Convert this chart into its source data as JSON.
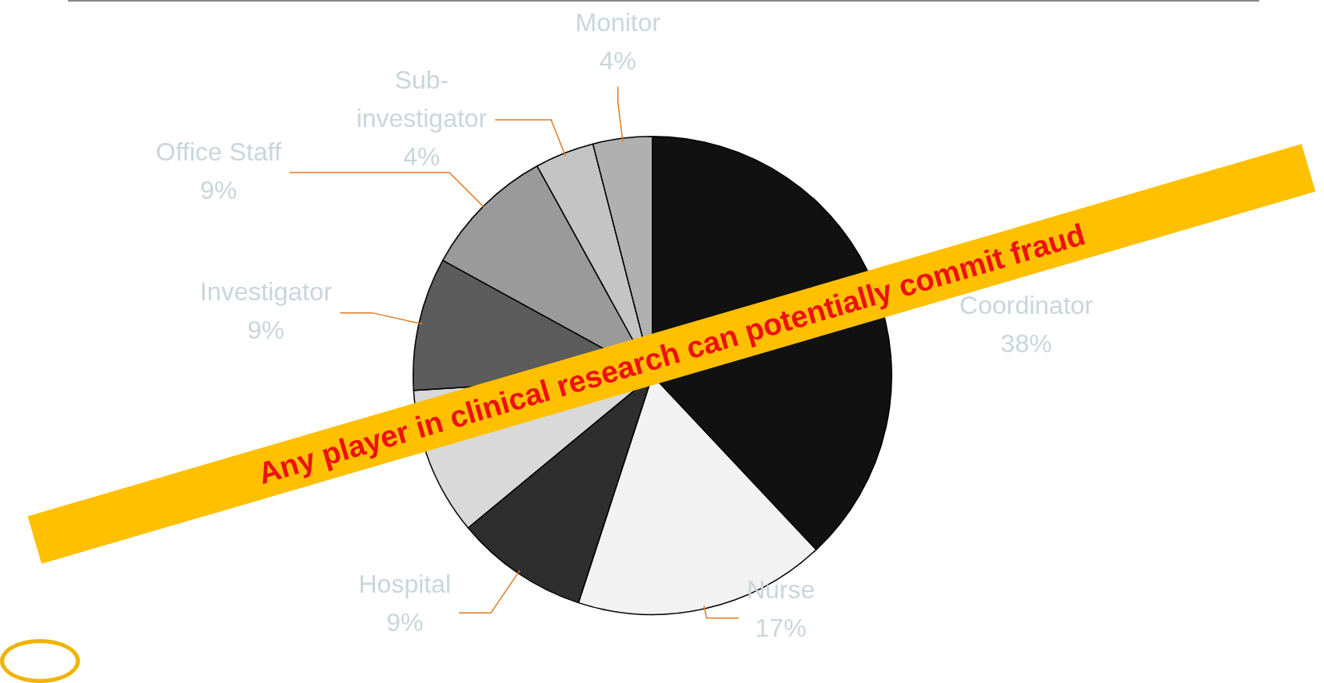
{
  "chart_data": {
    "type": "pie",
    "categories": [
      "Coordinator",
      "Nurse",
      "Hospital",
      null,
      "Investigator",
      "Office Staff",
      "Sub-investigator",
      "Monitor"
    ],
    "values": [
      38,
      17,
      9,
      10,
      9,
      9,
      4,
      4
    ],
    "value_labels": [
      "38%",
      "17%",
      "9%",
      null,
      "9%",
      "9%",
      "4%",
      "4%"
    ],
    "colors": [
      "#111111",
      "#f2f2f2",
      "#2e2e2e",
      "#d9d9d9",
      "#5c5c5c",
      "#9a9a9a",
      "#c4c4c4",
      "#b0b0b0"
    ],
    "legend": false,
    "annotations": [
      "Any player in clinical research can potentially commit fraud"
    ]
  }
}
